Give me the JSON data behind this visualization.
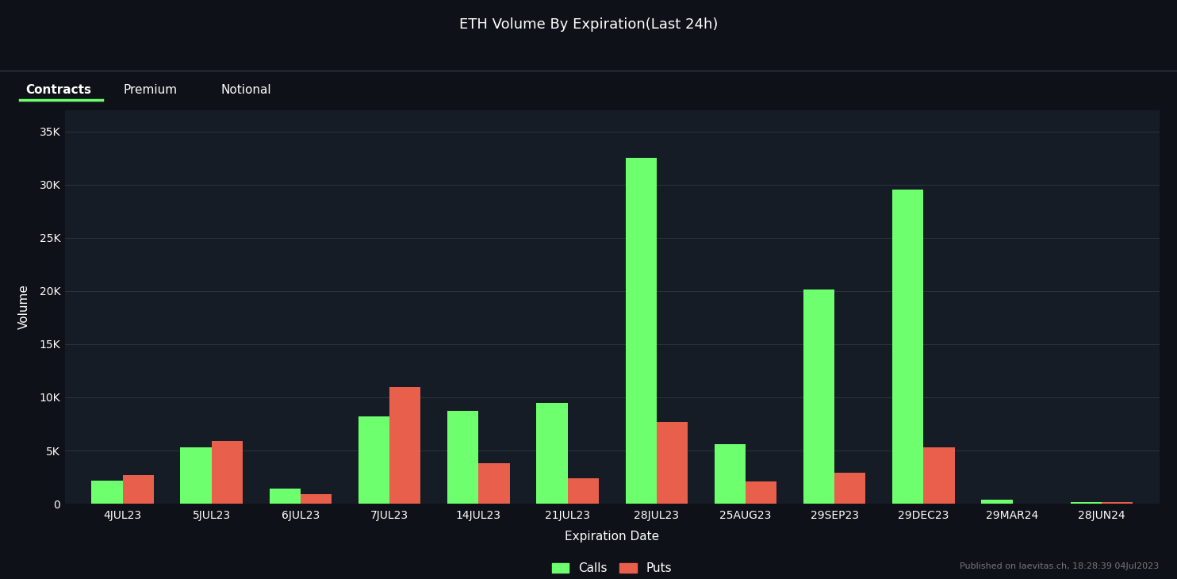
{
  "title": "ETH Volume By Expiration(Last 24h)",
  "xlabel": "Expiration Date",
  "ylabel": "Volume",
  "background_color": "#0e1117",
  "plot_bg_color": "#161c26",
  "grid_color": "#2a3340",
  "text_color": "#ffffff",
  "tab_separator_color": "#3a4050",
  "categories": [
    "4JUL23",
    "5JUL23",
    "6JUL23",
    "7JUL23",
    "14JUL23",
    "21JUL23",
    "28JUL23",
    "25AUG23",
    "29SEP23",
    "29DEC23",
    "29MAR24",
    "28JUN24"
  ],
  "calls": [
    2200,
    5300,
    1400,
    8200,
    8700,
    9500,
    32500,
    5600,
    20100,
    29500,
    400,
    150
  ],
  "puts": [
    2700,
    5900,
    900,
    11000,
    3800,
    2400,
    7700,
    2100,
    2900,
    5300,
    0,
    150
  ],
  "calls_color": "#6eff6e",
  "puts_color": "#e8604c",
  "yticks": [
    0,
    5000,
    10000,
    15000,
    20000,
    25000,
    30000,
    35000
  ],
  "ytick_labels": [
    "0",
    "5K",
    "10K",
    "15K",
    "20K",
    "25K",
    "30K",
    "35K"
  ],
  "ylim": [
    0,
    37000
  ],
  "footer_text": "Published on laevitas.ch, 18:28:39 04Jul2023",
  "tab_labels": [
    "Contracts",
    "Premium",
    "Notional"
  ],
  "active_tab": 0,
  "legend_labels": [
    "Calls",
    "Puts"
  ]
}
